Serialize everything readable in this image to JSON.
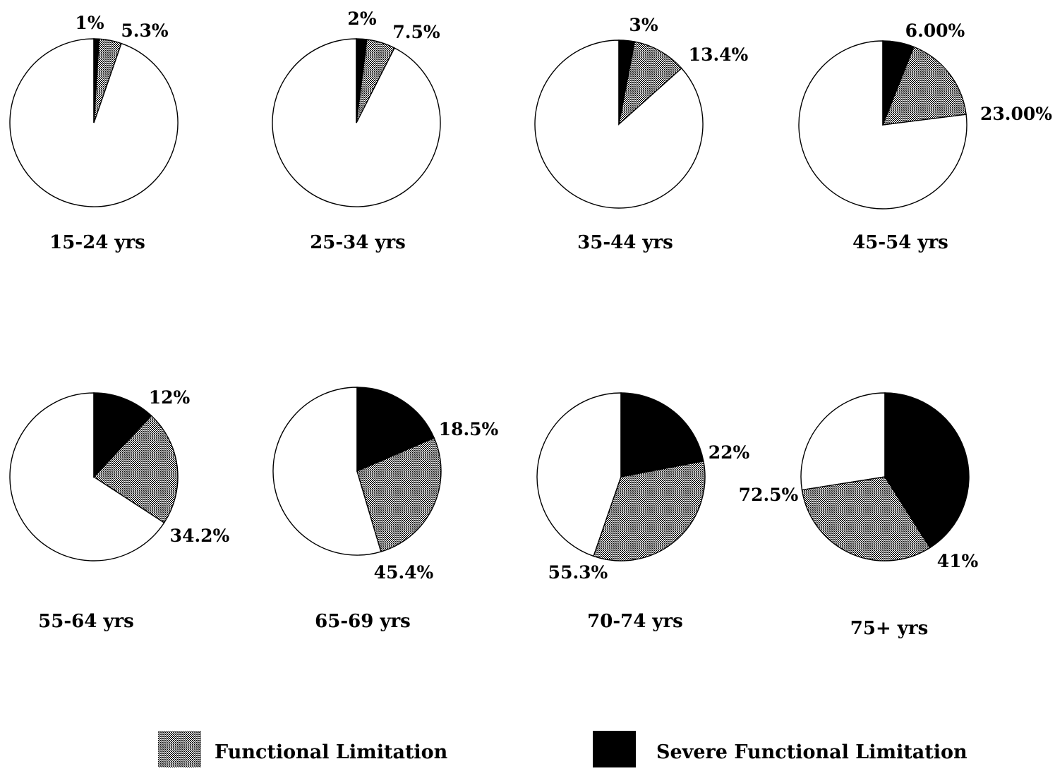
{
  "chart_data": [
    {
      "type": "pie",
      "title": "15-24 yrs",
      "severe": 1,
      "functional": 5.3,
      "labels": {
        "severe": "1%",
        "functional": "5.3%"
      }
    },
    {
      "type": "pie",
      "title": "25-34 yrs",
      "severe": 2,
      "functional": 7.5,
      "labels": {
        "severe": "2%",
        "functional": "7.5%"
      }
    },
    {
      "type": "pie",
      "title": "35-44 yrs",
      "severe": 3,
      "functional": 13.4,
      "labels": {
        "severe": "3%",
        "functional": "13.4%"
      }
    },
    {
      "type": "pie",
      "title": "45-54 yrs",
      "severe": 6,
      "functional": 23,
      "labels": {
        "severe": "6.00%",
        "functional": "23.00%"
      }
    },
    {
      "type": "pie",
      "title": "55-64 yrs",
      "severe": 12,
      "functional": 34.2,
      "labels": {
        "severe": "12%",
        "functional": "34.2%"
      }
    },
    {
      "type": "pie",
      "title": "65-69 yrs",
      "severe": 18.5,
      "functional": 45.4,
      "labels": {
        "severe": "18.5%",
        "functional": "45.4%"
      }
    },
    {
      "type": "pie",
      "title": "70-74 yrs",
      "severe": 22,
      "functional": 55.3,
      "labels": {
        "severe": "22%",
        "functional": "55.3%"
      }
    },
    {
      "type": "pie",
      "title": "75+ yrs",
      "severe": 41,
      "functional": 72.5,
      "labels": {
        "severe": "41%",
        "functional": "72.5%"
      }
    }
  ],
  "legend": {
    "functional_label": "Functional Limitation",
    "severe_label": "Severe Functional Limitation"
  },
  "colors": {
    "severe": "#000000",
    "functional": "hatched-gray",
    "remainder": "#ffffff",
    "outline": "#000000"
  }
}
